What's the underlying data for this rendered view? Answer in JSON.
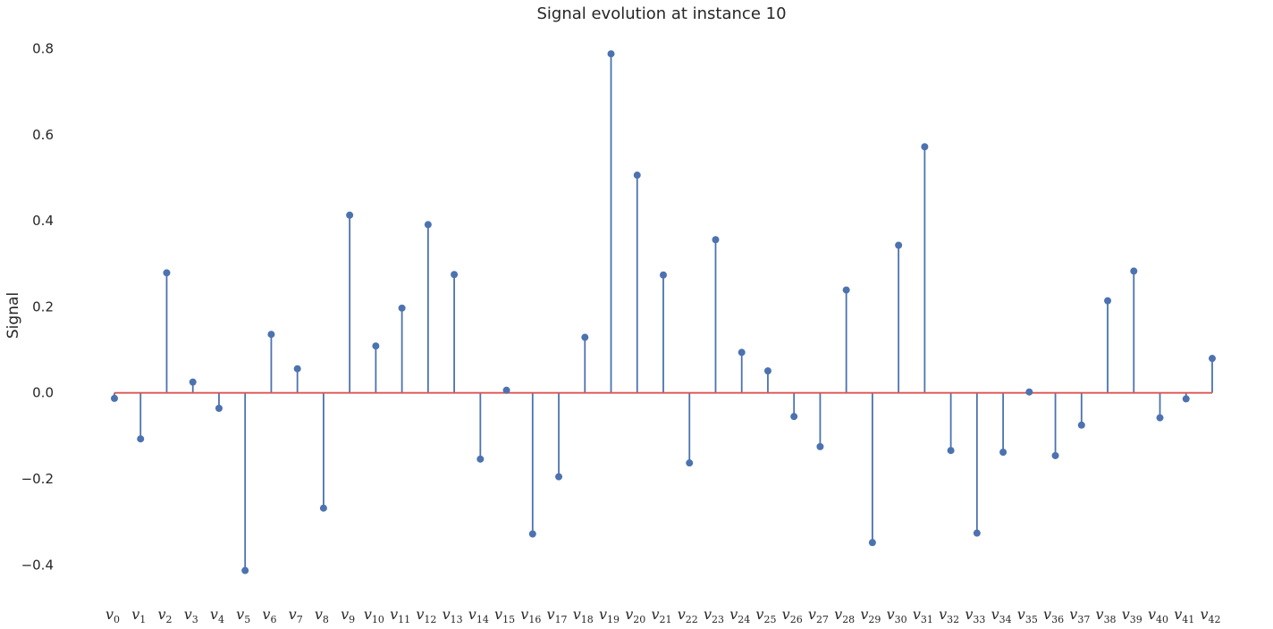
{
  "chart_data": {
    "type": "stem",
    "title": "Signal evolution at instance 10",
    "xlabel": "",
    "ylabel": "Signal",
    "ylim": [
      -0.47,
      0.83
    ],
    "yticks": [
      -0.4,
      -0.2,
      0.0,
      0.2,
      0.4,
      0.6,
      0.8
    ],
    "ytick_labels": [
      "−0.4",
      "−0.2",
      "0.0",
      "0.2",
      "0.4",
      "0.6",
      "0.8"
    ],
    "grid": false,
    "baseline": 0,
    "categories": [
      {
        "base": "v",
        "sub": "0"
      },
      {
        "base": "v",
        "sub": "1"
      },
      {
        "base": "v",
        "sub": "2"
      },
      {
        "base": "v",
        "sub": "3"
      },
      {
        "base": "v",
        "sub": "4"
      },
      {
        "base": "v",
        "sub": "5"
      },
      {
        "base": "v",
        "sub": "6"
      },
      {
        "base": "v",
        "sub": "7"
      },
      {
        "base": "v",
        "sub": "8"
      },
      {
        "base": "v",
        "sub": "9"
      },
      {
        "base": "v",
        "sub": "10"
      },
      {
        "base": "v",
        "sub": "11"
      },
      {
        "base": "v",
        "sub": "12"
      },
      {
        "base": "v",
        "sub": "13"
      },
      {
        "base": "v",
        "sub": "14"
      },
      {
        "base": "v",
        "sub": "15"
      },
      {
        "base": "v",
        "sub": "16"
      },
      {
        "base": "v",
        "sub": "17"
      },
      {
        "base": "v",
        "sub": "18"
      },
      {
        "base": "v",
        "sub": "19"
      },
      {
        "base": "v",
        "sub": "20"
      },
      {
        "base": "v",
        "sub": "21"
      },
      {
        "base": "v",
        "sub": "22"
      },
      {
        "base": "v",
        "sub": "23"
      },
      {
        "base": "v",
        "sub": "24"
      },
      {
        "base": "v",
        "sub": "25"
      },
      {
        "base": "v",
        "sub": "26"
      },
      {
        "base": "v",
        "sub": "27"
      },
      {
        "base": "v",
        "sub": "28"
      },
      {
        "base": "v",
        "sub": "29"
      },
      {
        "base": "v",
        "sub": "30"
      },
      {
        "base": "v",
        "sub": "31"
      },
      {
        "base": "v",
        "sub": "32"
      },
      {
        "base": "v",
        "sub": "33"
      },
      {
        "base": "v",
        "sub": "34"
      },
      {
        "base": "v",
        "sub": "35"
      },
      {
        "base": "v",
        "sub": "36"
      },
      {
        "base": "v",
        "sub": "37"
      },
      {
        "base": "v",
        "sub": "38"
      },
      {
        "base": "v",
        "sub": "39"
      },
      {
        "base": "v",
        "sub": "40"
      },
      {
        "base": "v",
        "sub": "41"
      },
      {
        "base": "v",
        "sub": "42"
      }
    ],
    "values": [
      -0.013,
      -0.107,
      0.279,
      0.025,
      -0.036,
      -0.413,
      0.136,
      0.056,
      -0.268,
      0.413,
      0.109,
      0.197,
      0.391,
      0.275,
      -0.154,
      0.006,
      -0.328,
      -0.195,
      0.129,
      0.788,
      0.506,
      0.274,
      -0.163,
      0.356,
      0.094,
      0.051,
      -0.055,
      -0.125,
      0.239,
      -0.348,
      0.343,
      0.572,
      -0.134,
      -0.326,
      -0.138,
      0.002,
      -0.146,
      -0.075,
      0.214,
      0.283,
      -0.058,
      -0.014,
      0.08
    ],
    "colors": {
      "stem": "#4c72b0",
      "marker": "#4c72b0",
      "baseline": "#dd5555",
      "text": "#262626"
    }
  }
}
